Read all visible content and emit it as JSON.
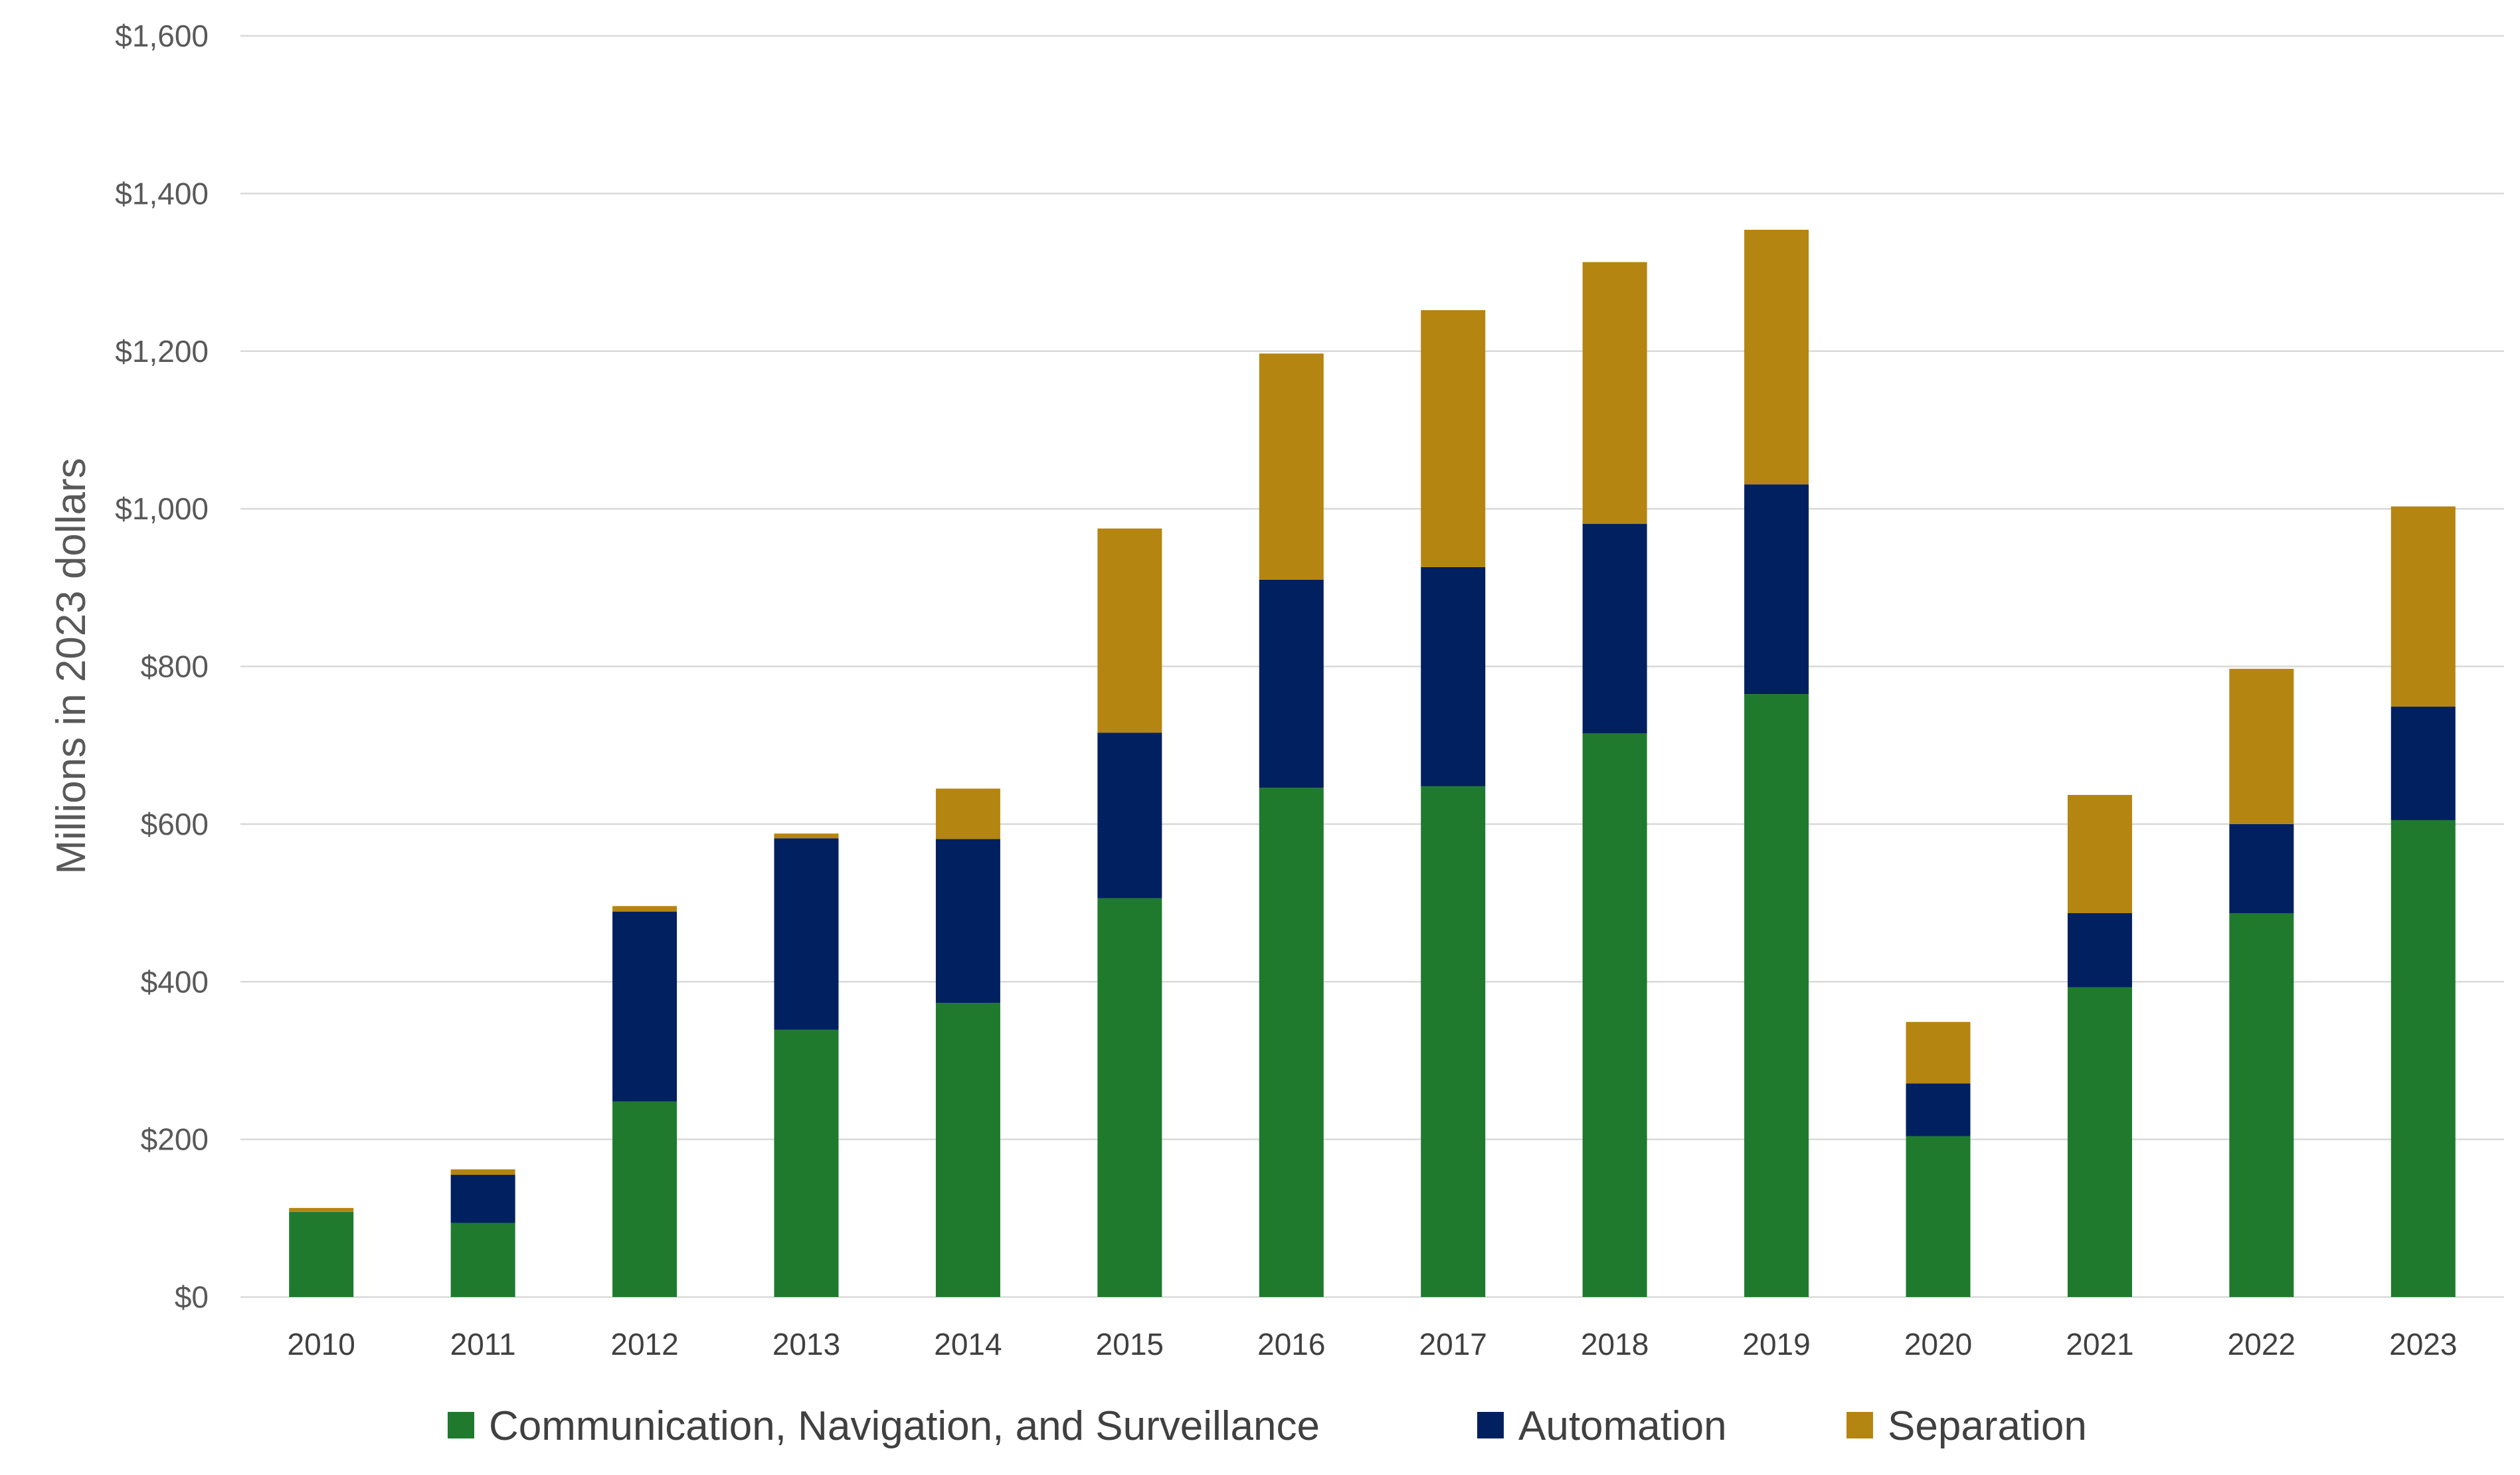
{
  "chart_data": {
    "type": "bar",
    "stacked": true,
    "title": "",
    "xlabel": "",
    "ylabel": "Millions in 2023 dollars",
    "ylim": [
      0,
      1600
    ],
    "y_ticks": [
      0,
      200,
      400,
      600,
      800,
      1000,
      1200,
      1400,
      1600
    ],
    "y_tick_labels": [
      "$0",
      "$200",
      "$400",
      "$600",
      "$800",
      "$1,000",
      "$1,200",
      "$1,400",
      "$1,600"
    ],
    "grid": true,
    "legend_position": "bottom",
    "categories": [
      "2010",
      "2011",
      "2012",
      "2013",
      "2014",
      "2015",
      "2016",
      "2017",
      "2018",
      "2019",
      "2020",
      "2021",
      "2022",
      "2023"
    ],
    "series": [
      {
        "name": "Communication, Navigation, and Surveillance",
        "color": "#1f7a2e",
        "values": [
          108,
          94,
          248,
          339,
          373,
          506,
          646,
          648,
          715,
          765,
          204,
          393,
          487,
          605
        ]
      },
      {
        "name": "Automation",
        "color": "#002060",
        "values": [
          0,
          61,
          241,
          243,
          208,
          210,
          264,
          278,
          266,
          266,
          67,
          94,
          113,
          144
        ]
      },
      {
        "name": "Separation",
        "color": "#b58512",
        "values": [
          5,
          7,
          7,
          6,
          64,
          259,
          287,
          326,
          332,
          323,
          78,
          150,
          197,
          254
        ]
      }
    ]
  }
}
